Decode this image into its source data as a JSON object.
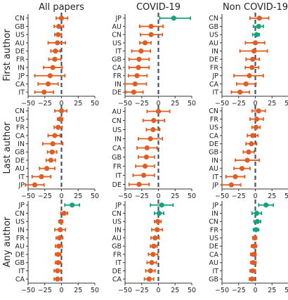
{
  "colors": {
    "negative": "#e05d23",
    "positive": "#14a37a",
    "zero_line": "#4a5363",
    "axis": "#333333"
  },
  "column_titles": [
    "All papers",
    "COVID-19",
    "Non COVID-19"
  ],
  "row_titles": [
    "First author",
    "Last author",
    "Any author"
  ],
  "chart_data": [
    {
      "type": "scatter",
      "row": "First author",
      "column": "All papers",
      "xlim": [
        -50,
        50
      ],
      "xticks": [
        -50,
        -25,
        0,
        25,
        50
      ],
      "categories": [
        "CN",
        "GB",
        "US",
        "AU",
        "DE",
        "FR",
        "IN",
        "JP",
        "CA",
        "IT"
      ],
      "values": [
        0,
        -4,
        -5,
        -6,
        -9,
        -10,
        -13,
        -17,
        -20,
        -26
      ],
      "ci_low": [
        -8,
        -11,
        -10,
        -20,
        -16,
        -19,
        -27,
        -40,
        -35,
        -40
      ],
      "ci_high": [
        9,
        3,
        0,
        6,
        -2,
        -1,
        1,
        5,
        -5,
        -12
      ]
    },
    {
      "type": "scatter",
      "row": "First author",
      "column": "COVID-19",
      "xlim": [
        -50,
        50
      ],
      "xticks": [
        -50,
        -25,
        0,
        25,
        50
      ],
      "categories": [
        "JP",
        "AU",
        "CN",
        "US",
        "IT",
        "GB",
        "CA",
        "FR",
        "IN",
        "DE"
      ],
      "values": [
        23,
        -11,
        -11,
        -20,
        -26,
        -29,
        -30,
        -32,
        -35,
        -37
      ],
      "ci_low": [
        2,
        -28,
        -27,
        -28,
        -40,
        -44,
        -44,
        -45,
        -50,
        -49
      ],
      "ci_high": [
        48,
        7,
        6,
        -11,
        -12,
        -14,
        -14,
        -17,
        -18,
        -23
      ]
    },
    {
      "type": "scatter",
      "row": "First author",
      "column": "Non COVID-19",
      "xlim": [
        -50,
        50
      ],
      "xticks": [
        -50,
        -25,
        0,
        25,
        50
      ],
      "categories": [
        "CN",
        "GB",
        "US",
        "AU",
        "IN",
        "DE",
        "FR",
        "JP",
        "CA",
        "IT"
      ],
      "values": [
        6,
        5,
        2,
        0,
        -2,
        -4,
        -5,
        -9,
        -14,
        -23
      ],
      "ci_low": [
        -8,
        -3,
        -4,
        -15,
        -23,
        -14,
        -15,
        -32,
        -28,
        -36
      ],
      "ci_high": [
        20,
        12,
        6,
        14,
        18,
        6,
        5,
        12,
        1,
        -9
      ]
    },
    {
      "type": "scatter",
      "row": "Last author",
      "column": "All papers",
      "xlim": [
        -50,
        50
      ],
      "xticks": [
        -50,
        -25,
        0,
        25,
        50
      ],
      "categories": [
        "CN",
        "US",
        "FR",
        "CA",
        "IN",
        "GB",
        "DE",
        "AU",
        "IT",
        "JP"
      ],
      "values": [
        0,
        -2,
        -5,
        -10,
        -13,
        -14,
        -16,
        -22,
        -30,
        -40
      ],
      "ci_low": [
        -10,
        -6,
        -11,
        -20,
        -28,
        -21,
        -23,
        -33,
        -44,
        -54
      ],
      "ci_high": [
        8,
        2,
        1,
        -2,
        2,
        -7,
        -9,
        -10,
        -16,
        -26
      ]
    },
    {
      "type": "scatter",
      "row": "Last author",
      "column": "COVID-19",
      "xlim": [
        -50,
        50
      ],
      "xticks": [
        -50,
        -25,
        0,
        25,
        50
      ],
      "categories": [
        "AU",
        "CN",
        "US",
        "IN",
        "CA",
        "GB",
        "FR",
        "IT",
        "DE"
      ],
      "values": [
        0,
        -7,
        -8,
        -12,
        -17,
        -18,
        -20,
        -22,
        -29
      ],
      "ci_low": [
        -17,
        -23,
        -18,
        -30,
        -32,
        -30,
        -34,
        -38,
        -44
      ],
      "ci_high": [
        17,
        9,
        2,
        6,
        -2,
        -6,
        -6,
        -6,
        -14
      ]
    },
    {
      "type": "scatter",
      "row": "Last author",
      "column": "Non COVID-19",
      "xlim": [
        -50,
        50
      ],
      "xticks": [
        -50,
        -25,
        0,
        25,
        50
      ],
      "categories": [
        "CN",
        "FR",
        "US",
        "CA",
        "DE",
        "GB",
        "IN",
        "AU",
        "IT",
        "JP"
      ],
      "values": [
        5,
        2,
        1,
        -4,
        -6,
        -10,
        -12,
        -20,
        -30,
        -36
      ],
      "ci_low": [
        -5,
        -8,
        -5,
        -12,
        -14,
        -18,
        -30,
        -32,
        -44,
        -50
      ],
      "ci_high": [
        15,
        12,
        7,
        4,
        2,
        -2,
        6,
        -8,
        -16,
        -22
      ]
    },
    {
      "type": "scatter",
      "row": "Any author",
      "column": "All papers",
      "xlim": [
        -50,
        50
      ],
      "xticks": [
        -50,
        -25,
        0,
        25,
        50
      ],
      "categories": [
        "JP",
        "CN",
        "US",
        "IN",
        "FR",
        "AU",
        "DE",
        "GB",
        "IT",
        "CA"
      ],
      "values": [
        16,
        4,
        -1,
        -2,
        -3,
        -4,
        -5,
        -5,
        -6,
        -6
      ],
      "ci_low": [
        5,
        -1,
        -4,
        -10,
        -8,
        -9,
        -9,
        -9,
        -11,
        -11
      ],
      "ci_high": [
        27,
        9,
        2,
        6,
        2,
        1,
        -1,
        -1,
        -1,
        -1
      ]
    },
    {
      "type": "scatter",
      "row": "Any author",
      "column": "COVID-19",
      "xlim": [
        -50,
        50
      ],
      "xticks": [
        -50,
        -25,
        0,
        25,
        50
      ],
      "categories": [
        "JP",
        "CN",
        "US",
        "IN",
        "AU",
        "GB",
        "FR",
        "IT",
        "DE",
        "CA"
      ],
      "values": [
        5,
        1,
        -1,
        -2,
        -5,
        -7,
        -8,
        -10,
        -12,
        -14
      ],
      "ci_low": [
        -12,
        -6,
        -6,
        -10,
        -11,
        -12,
        -15,
        -17,
        -19,
        -21
      ],
      "ci_high": [
        22,
        8,
        4,
        6,
        1,
        -2,
        -1,
        -3,
        -5,
        -7
      ]
    },
    {
      "type": "scatter",
      "row": "Any author",
      "column": "Non COVID-19",
      "xlim": [
        -50,
        50
      ],
      "xticks": [
        -50,
        -25,
        0,
        25,
        50
      ],
      "categories": [
        "JP",
        "IN",
        "CN",
        "FR",
        "US",
        "DE",
        "CA",
        "AU",
        "IT",
        "GB"
      ],
      "values": [
        16,
        2,
        3,
        1,
        -1,
        -2,
        -3,
        -3,
        -4,
        -5
      ],
      "ci_low": [
        5,
        -5,
        -2,
        -3,
        -4,
        -6,
        -7,
        -7,
        -8,
        -9
      ],
      "ci_high": [
        27,
        9,
        8,
        5,
        2,
        2,
        1,
        1,
        0,
        -1
      ]
    }
  ]
}
